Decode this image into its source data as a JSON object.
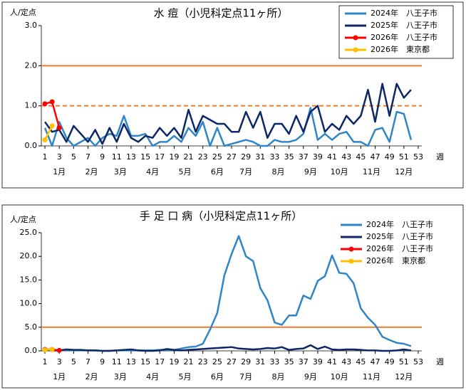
{
  "chart_data": [
    {
      "type": "line",
      "title": "水 痘（小児科定点11ヶ所）",
      "y_label": "人/定点",
      "x_label": "週",
      "x": [
        1,
        2,
        3,
        4,
        5,
        6,
        7,
        8,
        9,
        10,
        11,
        12,
        13,
        14,
        15,
        16,
        17,
        18,
        19,
        20,
        21,
        22,
        23,
        24,
        25,
        26,
        27,
        28,
        29,
        30,
        31,
        32,
        33,
        34,
        35,
        36,
        37,
        38,
        39,
        40,
        41,
        42,
        43,
        44,
        45,
        46,
        47,
        48,
        49,
        50,
        51,
        52,
        53
      ],
      "xlim": [
        0.5,
        53.5
      ],
      "xticks": [
        1,
        3,
        5,
        7,
        9,
        11,
        13,
        15,
        17,
        19,
        21,
        23,
        25,
        27,
        29,
        31,
        33,
        35,
        37,
        39,
        41,
        43,
        45,
        47,
        49,
        51,
        53
      ],
      "month_ticks": [
        {
          "value": 3,
          "label": "1月"
        },
        {
          "value": 7.5,
          "label": "2月"
        },
        {
          "value": 11.5,
          "label": "3月"
        },
        {
          "value": 16,
          "label": "4月"
        },
        {
          "value": 20.5,
          "label": "5月"
        },
        {
          "value": 25,
          "label": "6月"
        },
        {
          "value": 29,
          "label": "7月"
        },
        {
          "value": 33.5,
          "label": "8月"
        },
        {
          "value": 38,
          "label": "9月"
        },
        {
          "value": 42,
          "label": "10月"
        },
        {
          "value": 46.5,
          "label": "11月"
        },
        {
          "value": 51,
          "label": "12月"
        }
      ],
      "ylim": [
        0,
        3
      ],
      "yticks": [
        {
          "value": 0,
          "label": "0.0"
        },
        {
          "value": 1,
          "label": "1.0"
        },
        {
          "value": 2,
          "label": "2.0"
        },
        {
          "value": 3,
          "label": "3.0"
        }
      ],
      "reference_lines": [
        {
          "value": 2,
          "color": "#ed7d31",
          "dashed": false
        },
        {
          "value": 1,
          "color": "#ed7d31",
          "dashed": true
        }
      ],
      "legend_border": true,
      "series": [
        {
          "name": "2024年　八王子市",
          "color": "#2e86c8",
          "marker": false,
          "values": [
            0.45,
            0.0,
            0.6,
            0.2,
            0.0,
            0.1,
            0.2,
            0.0,
            0.2,
            0.3,
            0.25,
            0.75,
            0.25,
            0.25,
            0.3,
            0.0,
            0.1,
            0.1,
            0.25,
            0.1,
            0.45,
            0.25,
            0.6,
            0.0,
            0.45,
            0.0,
            0.05,
            0.1,
            0.15,
            0.1,
            0.0,
            0.0,
            0.15,
            0.1,
            0.1,
            0.15,
            0.3,
            0.95,
            0.15,
            0.3,
            0.15,
            0.3,
            0.35,
            0.1,
            0.1,
            0.0,
            0.4,
            0.45,
            0.1,
            0.85,
            0.8,
            0.15,
            null
          ]
        },
        {
          "name": "2025年　八王子市",
          "color": "#0d2766",
          "marker": false,
          "values": [
            0.6,
            0.35,
            0.4,
            0.1,
            0.5,
            0.3,
            0.1,
            0.4,
            0.05,
            0.45,
            0.1,
            0.55,
            0.2,
            0.1,
            0.25,
            0.2,
            0.45,
            0.25,
            0.45,
            0.2,
            0.9,
            0.35,
            0.75,
            0.65,
            0.55,
            0.55,
            0.35,
            0.35,
            0.85,
            0.45,
            0.85,
            0.2,
            0.55,
            0.55,
            0.3,
            0.75,
            0.35,
            0.85,
            1.0,
            0.35,
            0.55,
            0.4,
            0.75,
            0.55,
            0.75,
            1.4,
            0.6,
            1.55,
            0.75,
            1.55,
            1.2,
            1.4,
            null
          ]
        },
        {
          "name": "2026年　八王子市",
          "color": "#ff0000",
          "marker": true,
          "values": [
            1.05,
            1.1,
            0.45,
            null,
            null,
            null,
            null,
            null,
            null,
            null,
            null,
            null,
            null,
            null,
            null,
            null,
            null,
            null,
            null,
            null,
            null,
            null,
            null,
            null,
            null,
            null,
            null,
            null,
            null,
            null,
            null,
            null,
            null,
            null,
            null,
            null,
            null,
            null,
            null,
            null,
            null,
            null,
            null,
            null,
            null,
            null,
            null,
            null,
            null,
            null,
            null,
            null,
            null
          ]
        },
        {
          "name": "2026年　東京都",
          "color": "#ffc000",
          "marker": true,
          "values": [
            0.15,
            0.5,
            null,
            null,
            null,
            null,
            null,
            null,
            null,
            null,
            null,
            null,
            null,
            null,
            null,
            null,
            null,
            null,
            null,
            null,
            null,
            null,
            null,
            null,
            null,
            null,
            null,
            null,
            null,
            null,
            null,
            null,
            null,
            null,
            null,
            null,
            null,
            null,
            null,
            null,
            null,
            null,
            null,
            null,
            null,
            null,
            null,
            null,
            null,
            null,
            null,
            null,
            null
          ]
        }
      ]
    },
    {
      "type": "line",
      "title": "手 足 口 病（小児科定点11ヶ所）",
      "y_label": "人/定点",
      "x_label": "週",
      "x": [
        1,
        2,
        3,
        4,
        5,
        6,
        7,
        8,
        9,
        10,
        11,
        12,
        13,
        14,
        15,
        16,
        17,
        18,
        19,
        20,
        21,
        22,
        23,
        24,
        25,
        26,
        27,
        28,
        29,
        30,
        31,
        32,
        33,
        34,
        35,
        36,
        37,
        38,
        39,
        40,
        41,
        42,
        43,
        44,
        45,
        46,
        47,
        48,
        49,
        50,
        51,
        52,
        53
      ],
      "xlim": [
        0.5,
        53.5
      ],
      "xticks": [
        1,
        3,
        5,
        7,
        9,
        11,
        13,
        15,
        17,
        19,
        21,
        23,
        25,
        27,
        29,
        31,
        33,
        35,
        37,
        39,
        41,
        43,
        45,
        47,
        49,
        51,
        53
      ],
      "month_ticks": [
        {
          "value": 3,
          "label": "1月"
        },
        {
          "value": 7.5,
          "label": "2月"
        },
        {
          "value": 11.5,
          "label": "3月"
        },
        {
          "value": 16,
          "label": "4月"
        },
        {
          "value": 20.5,
          "label": "5月"
        },
        {
          "value": 25,
          "label": "6月"
        },
        {
          "value": 29,
          "label": "7月"
        },
        {
          "value": 33.5,
          "label": "8月"
        },
        {
          "value": 38,
          "label": "9月"
        },
        {
          "value": 42,
          "label": "10月"
        },
        {
          "value": 46.5,
          "label": "11月"
        },
        {
          "value": 51,
          "label": "12月"
        }
      ],
      "ylim": [
        0,
        25
      ],
      "yticks": [
        {
          "value": 0,
          "label": "0.0"
        },
        {
          "value": 5,
          "label": "5.0"
        },
        {
          "value": 10,
          "label": "10.0"
        },
        {
          "value": 15,
          "label": "15.0"
        },
        {
          "value": 20,
          "label": "20.0"
        },
        {
          "value": 25,
          "label": "25.0"
        }
      ],
      "reference_lines": [
        {
          "value": 5,
          "color": "#ed7d31",
          "dashed": false
        }
      ],
      "legend_border": false,
      "series": [
        {
          "name": "2024年　八王子市",
          "color": "#2e86c8",
          "marker": false,
          "values": [
            0.1,
            0.1,
            0.1,
            0.2,
            0.1,
            0.1,
            0.1,
            0.1,
            0.0,
            0.0,
            0.1,
            0.1,
            0.1,
            0.1,
            0.1,
            0.1,
            0.2,
            0.2,
            0.2,
            0.5,
            0.8,
            0.9,
            1.5,
            4.5,
            8,
            16,
            20.5,
            24.3,
            20,
            19,
            13.3,
            10.7,
            6,
            5.5,
            7.5,
            7.5,
            11.7,
            11,
            14.8,
            15.8,
            20.2,
            16.5,
            16.3,
            14.3,
            9,
            7,
            5.5,
            3,
            2.3,
            1.7,
            1.5,
            1.0,
            null
          ]
        },
        {
          "name": "2025年　八王子市",
          "color": "#0d2766",
          "marker": false,
          "values": [
            0.2,
            0.1,
            0.1,
            0.3,
            0.2,
            0.2,
            0.1,
            0.1,
            0.0,
            0.0,
            0.1,
            0.2,
            0.3,
            0.1,
            0.0,
            0.0,
            0.1,
            0.4,
            0.2,
            0.1,
            0.2,
            0.3,
            0.4,
            0.5,
            0.6,
            0.7,
            0.8,
            0.5,
            0.4,
            0.3,
            0.4,
            0.6,
            0.5,
            0.8,
            0.2,
            0.4,
            0.5,
            1.2,
            0.4,
            0.9,
            0.3,
            0.2,
            0.3,
            0.3,
            0.2,
            0.1,
            0.1,
            0.0,
            0.0,
            0.1,
            0.3,
            0.1,
            null
          ]
        },
        {
          "name": "2026年　八王子市",
          "color": "#ff0000",
          "marker": true,
          "values": [
            0.3,
            0.3,
            0.1,
            null,
            null,
            null,
            null,
            null,
            null,
            null,
            null,
            null,
            null,
            null,
            null,
            null,
            null,
            null,
            null,
            null,
            null,
            null,
            null,
            null,
            null,
            null,
            null,
            null,
            null,
            null,
            null,
            null,
            null,
            null,
            null,
            null,
            null,
            null,
            null,
            null,
            null,
            null,
            null,
            null,
            null,
            null,
            null,
            null,
            null,
            null,
            null,
            null,
            null
          ]
        },
        {
          "name": "2026年　東京都",
          "color": "#ffc000",
          "marker": true,
          "values": [
            0.2,
            0.3,
            null,
            null,
            null,
            null,
            null,
            null,
            null,
            null,
            null,
            null,
            null,
            null,
            null,
            null,
            null,
            null,
            null,
            null,
            null,
            null,
            null,
            null,
            null,
            null,
            null,
            null,
            null,
            null,
            null,
            null,
            null,
            null,
            null,
            null,
            null,
            null,
            null,
            null,
            null,
            null,
            null,
            null,
            null,
            null,
            null,
            null,
            null,
            null,
            null,
            null,
            null
          ]
        }
      ]
    }
  ]
}
